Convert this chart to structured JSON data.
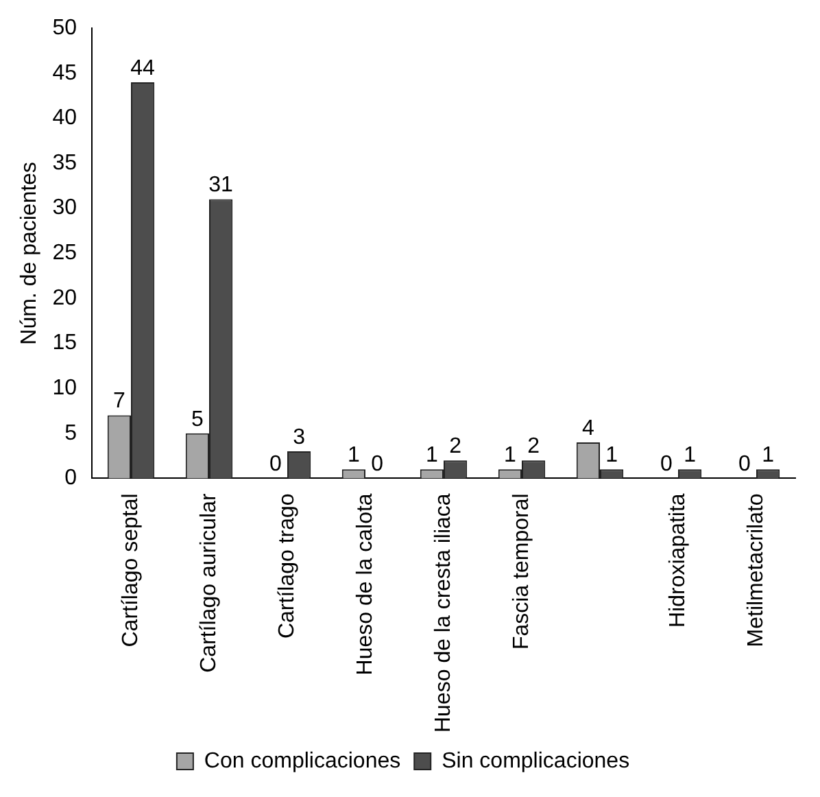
{
  "chart_data": {
    "type": "bar",
    "ylabel": "Núm. de pacientes",
    "categories": [
      "Cartílago septal",
      "Cartílago auricular",
      "Cartílago trago",
      "Hueso de la calota",
      "Hueso de la cresta iliaca",
      "Fascia temporal",
      null,
      "Hidroxiapatita",
      "Metilmetacrilato"
    ],
    "series": [
      {
        "name": "Con complicaciones",
        "color": "#a6a6a6",
        "values": [
          7,
          5,
          0,
          1,
          1,
          1,
          4,
          0,
          0
        ]
      },
      {
        "name": "Sin complicaciones",
        "color": "#4d4d4d",
        "values": [
          44,
          31,
          3,
          0,
          2,
          2,
          1,
          1,
          1
        ]
      }
    ],
    "ylim": [
      0,
      50
    ],
    "yticks": [
      0,
      5,
      10,
      15,
      20,
      25,
      30,
      35,
      40,
      45,
      50
    ],
    "grid": false,
    "legend": "bottom",
    "data_labels": true
  }
}
